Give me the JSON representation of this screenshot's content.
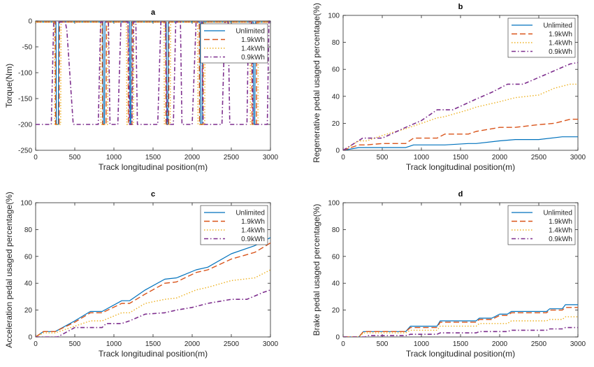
{
  "colors": {
    "unlimited": "#0072bd",
    "wh19": "#d95319",
    "wh14": "#edb120",
    "wh09": "#7e2f8e"
  },
  "chart_data": [
    {
      "type": "line",
      "id": "a",
      "title": "a",
      "xlabel": "Track longitudinal position(m)",
      "ylabel": "Torque(Nm)",
      "xlim": [
        0,
        3000
      ],
      "ylim": [
        -250,
        0
      ],
      "xticks": [
        0,
        500,
        1000,
        1500,
        2000,
        2500,
        3000
      ],
      "yticks": [
        -250,
        -200,
        -150,
        -100,
        -50,
        0
      ],
      "legend_position": "top-right",
      "series": [
        {
          "name": "Unlimited",
          "style": "solid",
          "color": "#0072bd",
          "segments": [
            [
              0,
              -2
            ],
            [
              260,
              -2
            ],
            [
              265,
              -200
            ],
            [
              290,
              -200
            ],
            [
              295,
              -2
            ],
            [
              860,
              -2
            ],
            [
              865,
              -200
            ],
            [
              880,
              -200
            ],
            [
              885,
              -2
            ],
            [
              1200,
              -2
            ],
            [
              1205,
              -200
            ],
            [
              1215,
              -200
            ],
            [
              1220,
              -2
            ],
            [
              1670,
              -2
            ],
            [
              1675,
              -200
            ],
            [
              1690,
              -200
            ],
            [
              1695,
              -2
            ],
            [
              2100,
              -2
            ],
            [
              2105,
              -200
            ],
            [
              2125,
              -200
            ],
            [
              2130,
              -2
            ],
            [
              2780,
              -2
            ],
            [
              2785,
              -200
            ],
            [
              2800,
              -200
            ],
            [
              2805,
              -2
            ],
            [
              3000,
              -2
            ]
          ]
        },
        {
          "name": "1.9kWh",
          "style": "dash",
          "color": "#d95319",
          "segments": [
            [
              0,
              -2
            ],
            [
              250,
              -2
            ],
            [
              255,
              -200
            ],
            [
              300,
              -200
            ],
            [
              305,
              -2
            ],
            [
              850,
              -2
            ],
            [
              855,
              -200
            ],
            [
              900,
              -200
            ],
            [
              905,
              -2
            ],
            [
              1180,
              -2
            ],
            [
              1185,
              -200
            ],
            [
              1230,
              -200
            ],
            [
              1235,
              -2
            ],
            [
              1660,
              -2
            ],
            [
              1665,
              -200
            ],
            [
              1700,
              -200
            ],
            [
              1705,
              -2
            ],
            [
              2090,
              -2
            ],
            [
              2095,
              -200
            ],
            [
              2140,
              -200
            ],
            [
              2145,
              -2
            ],
            [
              2760,
              -2
            ],
            [
              2765,
              -200
            ],
            [
              2820,
              -200
            ],
            [
              2825,
              -2
            ],
            [
              3000,
              -2
            ]
          ]
        },
        {
          "name": "1.4kWh",
          "style": "dot",
          "color": "#edb120",
          "segments": [
            [
              0,
              -2
            ],
            [
              240,
              -2
            ],
            [
              245,
              -200
            ],
            [
              320,
              -200
            ],
            [
              325,
              -2
            ],
            [
              830,
              -2
            ],
            [
              835,
              -200
            ],
            [
              920,
              -200
            ],
            [
              925,
              -2
            ],
            [
              1160,
              -2
            ],
            [
              1165,
              -200
            ],
            [
              1250,
              -200
            ],
            [
              1255,
              -2
            ],
            [
              1640,
              -2
            ],
            [
              1645,
              -200
            ],
            [
              1720,
              -200
            ],
            [
              1725,
              -2
            ],
            [
              2070,
              -2
            ],
            [
              2075,
              -200
            ],
            [
              2160,
              -200
            ],
            [
              2165,
              -2
            ],
            [
              2740,
              -2
            ],
            [
              2745,
              -200
            ],
            [
              2840,
              -200
            ],
            [
              2845,
              -2
            ],
            [
              3000,
              -2
            ]
          ]
        },
        {
          "name": "0.9kWh",
          "style": "dashdot",
          "color": "#7e2f8e",
          "segments": [
            [
              0,
              -200
            ],
            [
              200,
              -200
            ],
            [
              230,
              -2
            ],
            [
              380,
              -2
            ],
            [
              400,
              -20
            ],
            [
              480,
              -200
            ],
            [
              700,
              -200
            ],
            [
              800,
              -200
            ],
            [
              830,
              -2
            ],
            [
              930,
              -2
            ],
            [
              950,
              -200
            ],
            [
              1050,
              -200
            ],
            [
              1090,
              -2
            ],
            [
              1180,
              -2
            ],
            [
              1200,
              -200
            ],
            [
              1230,
              -200
            ],
            [
              1250,
              -2
            ],
            [
              1280,
              -2
            ],
            [
              1300,
              -200
            ],
            [
              1560,
              -200
            ],
            [
              1600,
              -2
            ],
            [
              1660,
              -2
            ],
            [
              1680,
              -200
            ],
            [
              1760,
              -200
            ],
            [
              1790,
              -2
            ],
            [
              1850,
              -2
            ],
            [
              1870,
              -200
            ],
            [
              2000,
              -200
            ],
            [
              2050,
              -2
            ],
            [
              2120,
              -2
            ],
            [
              2140,
              -200
            ],
            [
              2380,
              -200
            ],
            [
              2420,
              -2
            ],
            [
              2460,
              -2
            ],
            [
              2480,
              -200
            ],
            [
              2700,
              -200
            ],
            [
              2720,
              -2
            ],
            [
              2760,
              -2
            ],
            [
              2780,
              -200
            ],
            [
              2960,
              -200
            ],
            [
              2980,
              -2
            ],
            [
              3000,
              -2
            ]
          ]
        }
      ]
    },
    {
      "type": "line",
      "id": "b",
      "title": "b",
      "xlabel": "Track longitudinal position(m)",
      "ylabel": "Regenerative pedal usaged percentage(%)",
      "xlim": [
        0,
        3000
      ],
      "ylim": [
        0,
        100
      ],
      "xticks": [
        0,
        500,
        1000,
        1500,
        2000,
        2500,
        3000
      ],
      "yticks": [
        0,
        20,
        40,
        60,
        80,
        100
      ],
      "legend_position": "top-right",
      "series": [
        {
          "name": "Unlimited",
          "style": "solid",
          "color": "#0072bd",
          "x": [
            0,
            200,
            300,
            500,
            800,
            900,
            1200,
            1300,
            1600,
            1700,
            2000,
            2200,
            2500,
            2800,
            3000
          ],
          "y": [
            0,
            2,
            2,
            2,
            2,
            4,
            4,
            4,
            5,
            5,
            7,
            8,
            8,
            10,
            10
          ]
        },
        {
          "name": "1.9kWh",
          "style": "dash",
          "color": "#d95319",
          "x": [
            0,
            200,
            300,
            500,
            800,
            900,
            1200,
            1300,
            1600,
            1700,
            2000,
            2200,
            2500,
            2700,
            2900,
            3000
          ],
          "y": [
            0,
            4,
            4,
            5,
            5,
            9,
            9,
            12,
            12,
            14,
            17,
            17,
            19,
            20,
            23,
            23
          ]
        },
        {
          "name": "1.4kWh",
          "style": "dot",
          "color": "#edb120",
          "x": [
            0,
            200,
            300,
            500,
            800,
            900,
            1200,
            1300,
            1600,
            1700,
            2000,
            2200,
            2500,
            2700,
            2900,
            3000
          ],
          "y": [
            0,
            7,
            7,
            11,
            16,
            18,
            24,
            25,
            30,
            32,
            36,
            39,
            41,
            46,
            49,
            49
          ]
        },
        {
          "name": "0.9kWh",
          "style": "dashdot",
          "color": "#7e2f8e",
          "x": [
            0,
            250,
            300,
            500,
            800,
            1000,
            1200,
            1400,
            1700,
            1900,
            2100,
            2300,
            2500,
            2700,
            2900,
            3000
          ],
          "y": [
            0,
            9,
            9,
            9,
            17,
            22,
            30,
            30,
            38,
            43,
            49,
            49,
            54,
            59,
            64,
            65
          ]
        }
      ]
    },
    {
      "type": "line",
      "id": "c",
      "title": "c",
      "xlabel": "Track longitudinal position(m)",
      "ylabel": "Acceleration pedal usaged percentage(%)",
      "xlim": [
        0,
        3000
      ],
      "ylim": [
        0,
        100
      ],
      "xticks": [
        0,
        500,
        1000,
        1500,
        2000,
        2500,
        3000
      ],
      "yticks": [
        0,
        20,
        40,
        60,
        80,
        100
      ],
      "legend_position": "top-right",
      "series": [
        {
          "name": "Unlimited",
          "style": "solid",
          "color": "#0072bd",
          "x": [
            0,
            100,
            250,
            500,
            700,
            850,
            1100,
            1200,
            1400,
            1650,
            1800,
            2050,
            2200,
            2500,
            2800,
            3000
          ],
          "y": [
            0,
            4,
            4,
            12,
            19,
            19,
            27,
            27,
            35,
            43,
            44,
            50,
            52,
            62,
            68,
            74
          ]
        },
        {
          "name": "1.9kWh",
          "style": "dash",
          "color": "#d95319",
          "x": [
            0,
            100,
            250,
            500,
            700,
            850,
            1100,
            1200,
            1400,
            1650,
            1800,
            2050,
            2200,
            2500,
            2800,
            3000
          ],
          "y": [
            0,
            4,
            4,
            11,
            18,
            18,
            25,
            25,
            32,
            40,
            41,
            48,
            50,
            58,
            63,
            70
          ]
        },
        {
          "name": "1.4kWh",
          "style": "dot",
          "color": "#edb120",
          "x": [
            0,
            100,
            250,
            500,
            700,
            850,
            1100,
            1200,
            1400,
            1650,
            1800,
            2050,
            2200,
            2500,
            2800,
            3000
          ],
          "y": [
            0,
            3,
            3,
            8,
            12,
            12,
            18,
            18,
            25,
            28,
            29,
            35,
            37,
            42,
            44,
            50
          ]
        },
        {
          "name": "0.9kWh",
          "style": "dashdot",
          "color": "#7e2f8e",
          "x": [
            0,
            280,
            500,
            850,
            900,
            1100,
            1200,
            1400,
            1650,
            1800,
            2000,
            2200,
            2500,
            2700,
            2900,
            3000
          ],
          "y": [
            0,
            0,
            7,
            7,
            10,
            10,
            12,
            17,
            18,
            20,
            22,
            25,
            28,
            28,
            33,
            35
          ]
        }
      ]
    },
    {
      "type": "line",
      "id": "d",
      "title": "d",
      "xlabel": "Track longitudinal position(m)",
      "ylabel": "Brake pedal usaged percentage(%)",
      "xlim": [
        0,
        3000
      ],
      "ylim": [
        0,
        100
      ],
      "xticks": [
        0,
        500,
        1000,
        1500,
        2000,
        2500,
        3000
      ],
      "yticks": [
        0,
        20,
        40,
        60,
        80,
        100
      ],
      "legend_position": "top-right",
      "series": [
        {
          "name": "Unlimited",
          "style": "solid",
          "color": "#0072bd",
          "x": [
            0,
            200,
            260,
            800,
            860,
            1200,
            1240,
            1700,
            1740,
            1900,
            2000,
            2100,
            2150,
            2600,
            2640,
            2800,
            2840,
            3000
          ],
          "y": [
            0,
            0,
            4,
            4,
            8,
            8,
            12,
            12,
            14,
            14,
            17,
            17,
            19,
            19,
            21,
            21,
            24,
            24
          ]
        },
        {
          "name": "1.9kWh",
          "style": "dash",
          "color": "#d95319",
          "x": [
            0,
            200,
            260,
            800,
            860,
            1200,
            1240,
            1700,
            1740,
            1900,
            2000,
            2100,
            2150,
            2600,
            2640,
            2800,
            2840,
            3000
          ],
          "y": [
            0,
            0,
            4,
            4,
            7,
            7,
            11,
            11,
            13,
            13,
            16,
            16,
            18,
            18,
            20,
            20,
            22,
            22
          ]
        },
        {
          "name": "1.4kWh",
          "style": "dot",
          "color": "#edb120",
          "x": [
            0,
            200,
            260,
            800,
            860,
            1200,
            1240,
            1700,
            1740,
            2100,
            2150,
            2600,
            2640,
            2800,
            2840,
            3000
          ],
          "y": [
            0,
            0,
            3,
            3,
            5,
            5,
            8,
            8,
            10,
            10,
            12,
            12,
            13,
            13,
            15,
            15
          ]
        },
        {
          "name": "0.9kWh",
          "style": "dashdot",
          "color": "#7e2f8e",
          "x": [
            0,
            280,
            320,
            800,
            860,
            1200,
            1240,
            1700,
            1740,
            2100,
            2150,
            2600,
            2640,
            2800,
            2840,
            3000
          ],
          "y": [
            0,
            0,
            1,
            1,
            2,
            2,
            3,
            3,
            4,
            4,
            5,
            5,
            6,
            6,
            7,
            7
          ]
        }
      ]
    }
  ]
}
